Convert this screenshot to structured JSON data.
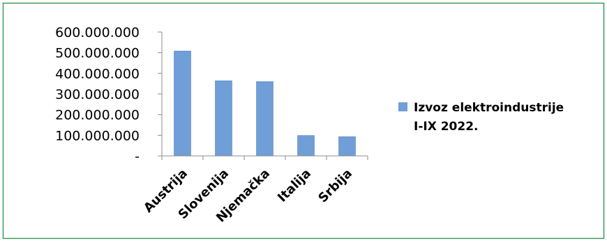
{
  "colors": {
    "frame_border": "#3e9a5a",
    "bar_fill": "#6f9fd6",
    "bar_stroke": "#5a86bb",
    "axis": "#8c8c8c"
  },
  "chart_data": {
    "type": "bar",
    "categories": [
      "Austrija",
      "Slovenija",
      "Njemačka",
      "Italija",
      "Srbija"
    ],
    "series": [
      {
        "name": "Izvoz elektroindustrije I-IX 2022.",
        "values": [
          508000000,
          364000000,
          360000000,
          99000000,
          93000000
        ]
      }
    ],
    "ylim": [
      0,
      600000000
    ],
    "y_ticks": [
      0,
      100000000,
      200000000,
      300000000,
      400000000,
      500000000,
      600000000
    ],
    "y_tick_labels": [
      "-",
      "100.000.000",
      "200.000.000",
      "300.000.000",
      "400.000.000",
      "500.000.000",
      "600.000.000"
    ],
    "grid": false,
    "legend_position": "right",
    "legend_lines": [
      "Izvoz elektroindustrije",
      "I-IX 2022."
    ],
    "title": "",
    "xlabel": "",
    "ylabel": ""
  }
}
